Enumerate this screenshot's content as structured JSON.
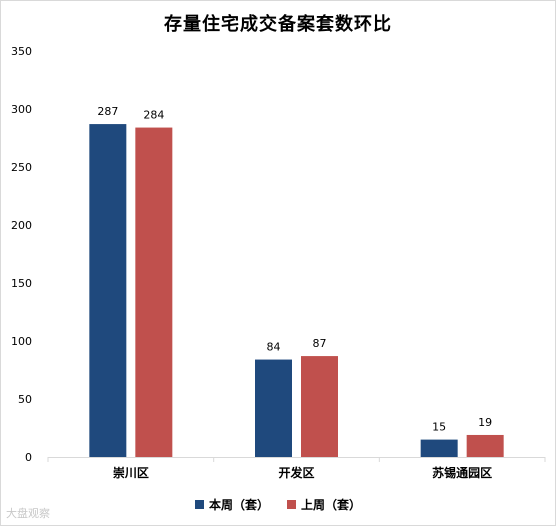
{
  "chart_data": {
    "type": "bar",
    "title": "存量住宅成交备案套数环比",
    "categories": [
      "崇川区",
      "开发区",
      "苏锡通园区"
    ],
    "series": [
      {
        "name": "本周（套）",
        "values": [
          287,
          84,
          15
        ],
        "color": "#1f497d"
      },
      {
        "name": "上周（套）",
        "values": [
          284,
          87,
          19
        ],
        "color": "#c0504d"
      }
    ],
    "ylim": [
      0,
      350
    ],
    "yticks": [
      0,
      50,
      100,
      150,
      200,
      250,
      300,
      350
    ],
    "grid": false,
    "legend": "bottom"
  },
  "watermark": "大盘观察"
}
